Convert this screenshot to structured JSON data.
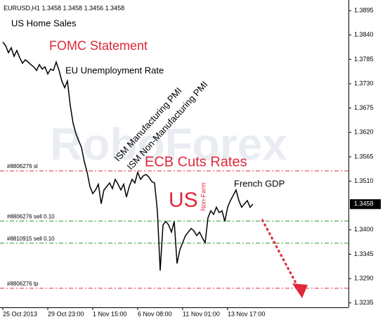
{
  "chart_data": {
    "type": "line",
    "header": "EURUSD,H1  1.3458 1.3458 1.3456 1.3458",
    "watermark": "RoboForex",
    "annotations": [
      "US Home Sales",
      "FOMC Statement",
      "EU Unemployment Rate",
      "ISM Manufacturing PMI",
      "ISM Non-Manufacturing PMI",
      "ECB Cuts Rates",
      "US",
      "Non-Farm",
      "French GDP"
    ],
    "series": [
      {
        "name": "EURUSD,H1",
        "color": "#000000",
        "values": [
          1.3824,
          1.3816,
          1.38,
          1.3811,
          1.3792,
          1.3805,
          1.3789,
          1.3776,
          1.3784,
          1.3779,
          1.3773,
          1.3768,
          1.376,
          1.3773,
          1.3763,
          1.3768,
          1.3752,
          1.3763,
          1.376,
          1.3779,
          1.376,
          1.3736,
          1.3721,
          1.3736,
          1.3681,
          1.3641,
          1.3617,
          1.3601,
          1.3586,
          1.3554,
          1.353,
          1.3498,
          1.3482,
          1.349,
          1.3503,
          1.3459,
          1.349,
          1.3498,
          1.3506,
          1.3493,
          1.3514,
          1.3503,
          1.349,
          1.3503,
          1.3474,
          1.3498,
          1.3514,
          1.3506,
          1.353,
          1.3514,
          1.3522,
          1.3525,
          1.3519,
          1.3509,
          1.3506,
          1.3443,
          1.3308,
          1.3411,
          1.3419,
          1.3411,
          1.3395,
          1.3419,
          1.3324,
          1.3355,
          1.3371,
          1.3387,
          1.3395,
          1.3403,
          1.3398,
          1.3387,
          1.3395,
          1.3382,
          1.3371,
          1.3427,
          1.3443,
          1.3435,
          1.3451,
          1.3439,
          1.3443,
          1.3419,
          1.3451,
          1.3466,
          1.3478,
          1.349,
          1.3466,
          1.3451,
          1.3459,
          1.3466,
          1.3451,
          1.3458
        ]
      }
    ],
    "xlim": [
      -1,
      123
    ],
    "xticks": [
      {
        "value": 0,
        "label": "25 Oct 2013"
      },
      {
        "value": 16,
        "label": "29 Oct 23:00"
      },
      {
        "value": 32,
        "label": "1 Nov 15:00"
      },
      {
        "value": 48,
        "label": "6 Nov 08:00"
      },
      {
        "value": 64,
        "label": "11 Nov 01:00"
      },
      {
        "value": 80,
        "label": "13 Nov 17:00"
      }
    ],
    "ylim": [
      1.3225,
      1.3919
    ],
    "yticks": [
      1.3895,
      {
        "value": 1.384,
        "label": "1.3840"
      },
      1.3785,
      {
        "value": 1.373,
        "label": "1.3730"
      },
      1.3675,
      {
        "value": 1.362,
        "label": "1.3620"
      },
      1.3565,
      {
        "value": 1.351,
        "label": "1.3510"
      },
      {
        "value": 1.34,
        "label": "1.3400"
      },
      1.3345,
      {
        "value": 1.329,
        "label": "1.3290"
      },
      1.3235
    ],
    "current_price": 1.3458,
    "levels": [
      {
        "label": "#8806276 sl",
        "value": 1.3533,
        "color": "#e0283a"
      },
      {
        "label": "#8806276 sell 0.10",
        "value": 1.342,
        "color": "#2a9a2a"
      },
      {
        "label": "#8810915 sell 0.10",
        "value": 1.337,
        "color": "#2a9a2a"
      },
      {
        "label": "#8806276 tp",
        "value": 1.3268,
        "color": "#e0283a"
      }
    ]
  }
}
